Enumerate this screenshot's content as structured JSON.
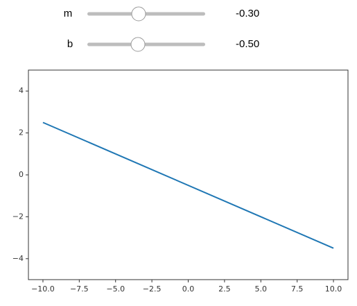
{
  "controls": [
    {
      "label": "m",
      "value": -0.3,
      "value_label": "-0.30"
    },
    {
      "label": "b",
      "value": -0.5,
      "value_label": "-0.50"
    }
  ],
  "chart_data": {
    "type": "line",
    "x": [
      -10,
      10
    ],
    "values": [
      2.5,
      -3.5
    ],
    "color": "#1f77b4",
    "xlim": [
      -11,
      11
    ],
    "ylim": [
      -5,
      5
    ],
    "xticks": [
      {
        "value": -10,
        "label": "−10.0"
      },
      {
        "value": -7.5,
        "label": "−7.5"
      },
      {
        "value": -5,
        "label": "−5.0"
      },
      {
        "value": -2.5,
        "label": "−2.5"
      },
      {
        "value": 0,
        "label": "0.0"
      },
      {
        "value": 2.5,
        "label": "2.5"
      },
      {
        "value": 5,
        "label": "5.0"
      },
      {
        "value": 7.5,
        "label": "7.5"
      },
      {
        "value": 10,
        "label": "10.0"
      }
    ],
    "yticks": [
      {
        "value": -4,
        "label": "−4"
      },
      {
        "value": -2,
        "label": "−2"
      },
      0,
      2,
      4
    ]
  }
}
